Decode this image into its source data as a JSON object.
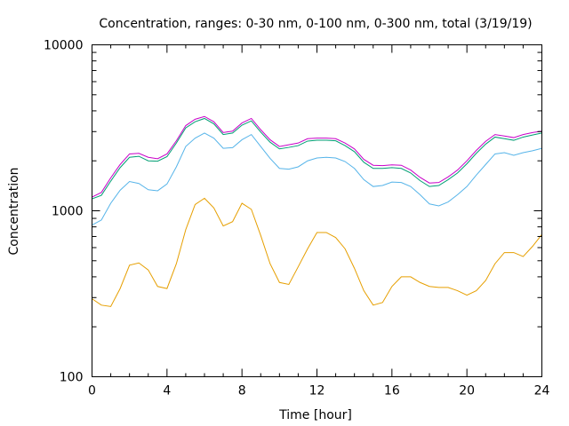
{
  "chart_data": {
    "type": "line",
    "title": "Concentration, ranges: 0-30 nm, 0-100 nm, 0-300 nm, total (3/19/19)",
    "xlabel": "Time [hour]",
    "ylabel": "Concentration",
    "xlim": [
      0,
      24
    ],
    "ylim": [
      100,
      10000
    ],
    "yscale": "log",
    "grid": false,
    "x_ticks": [
      0,
      4,
      8,
      12,
      16,
      20,
      24
    ],
    "x_tick_labels": [
      "0",
      "4",
      "8",
      "12",
      "16",
      "20",
      "24"
    ],
    "y_ticks": [
      100,
      1000,
      10000
    ],
    "y_tick_labels": [
      "100",
      "1000",
      "10000"
    ],
    "x": [
      0,
      0.5,
      1,
      1.5,
      2,
      2.5,
      3,
      3.5,
      4,
      4.5,
      5,
      5.5,
      6,
      6.5,
      7,
      7.5,
      8,
      8.5,
      9,
      9.5,
      10,
      10.5,
      11,
      11.5,
      12,
      12.5,
      13,
      13.5,
      14,
      14.5,
      15,
      15.5,
      16,
      16.5,
      17,
      17.5,
      18,
      18.5,
      19,
      19.5,
      20,
      20.5,
      21,
      21.5,
      22,
      22.5,
      23,
      23.5,
      24
    ],
    "series": [
      {
        "color": "#c800c8",
        "values": [
          1210,
          1290,
          1580,
          1900,
          2200,
          2220,
          2100,
          2060,
          2200,
          2640,
          3260,
          3560,
          3700,
          3440,
          2960,
          3020,
          3380,
          3600,
          3080,
          2680,
          2440,
          2500,
          2560,
          2720,
          2740,
          2740,
          2720,
          2560,
          2360,
          2040,
          1880,
          1870,
          1890,
          1880,
          1760,
          1590,
          1470,
          1480,
          1600,
          1760,
          2000,
          2310,
          2620,
          2880,
          2820,
          2760,
          2880,
          2960,
          3020
        ]
      },
      {
        "color": "#009e73",
        "values": [
          1180,
          1240,
          1510,
          1820,
          2100,
          2130,
          2000,
          1990,
          2120,
          2560,
          3160,
          3440,
          3600,
          3340,
          2880,
          2940,
          3280,
          3480,
          2980,
          2590,
          2360,
          2410,
          2470,
          2630,
          2660,
          2660,
          2640,
          2470,
          2270,
          1960,
          1800,
          1800,
          1820,
          1800,
          1690,
          1520,
          1400,
          1420,
          1540,
          1690,
          1920,
          2220,
          2520,
          2780,
          2720,
          2660,
          2780,
          2860,
          2940
        ]
      },
      {
        "color": "#56b4e9",
        "values": [
          820,
          880,
          1110,
          1330,
          1500,
          1460,
          1340,
          1320,
          1450,
          1840,
          2440,
          2740,
          2940,
          2740,
          2380,
          2400,
          2680,
          2880,
          2440,
          2070,
          1800,
          1780,
          1840,
          2000,
          2080,
          2100,
          2080,
          1980,
          1800,
          1540,
          1400,
          1420,
          1490,
          1480,
          1400,
          1250,
          1100,
          1070,
          1130,
          1250,
          1400,
          1640,
          1900,
          2200,
          2240,
          2160,
          2240,
          2300,
          2380
        ]
      },
      {
        "color": "#e69f00",
        "values": [
          295,
          270,
          265,
          340,
          470,
          485,
          440,
          350,
          340,
          480,
          770,
          1090,
          1190,
          1040,
          810,
          860,
          1110,
          1020,
          710,
          480,
          370,
          360,
          460,
          590,
          740,
          740,
          690,
          590,
          450,
          330,
          270,
          280,
          350,
          400,
          400,
          370,
          350,
          345,
          345,
          330,
          310,
          330,
          380,
          480,
          560,
          560,
          530,
          610,
          720
        ]
      }
    ]
  }
}
